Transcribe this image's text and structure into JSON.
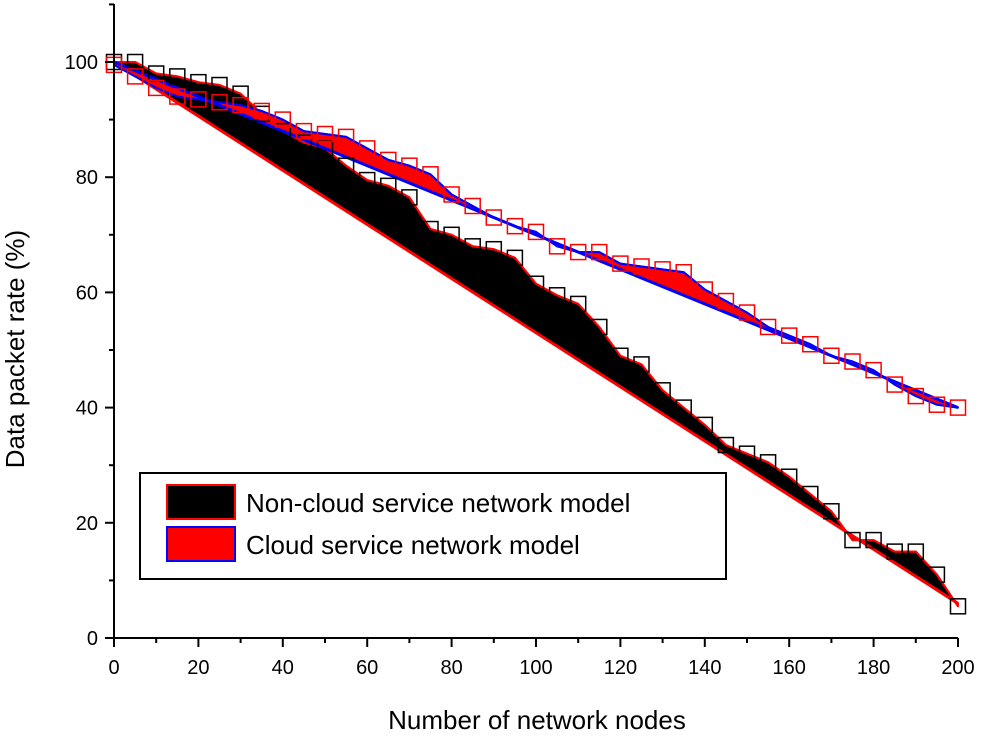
{
  "chart_data": {
    "type": "area",
    "xlabel": "Number of network nodes",
    "ylabel": "Data packet rate (%)",
    "xlim": [
      0,
      200
    ],
    "ylim": [
      0,
      110
    ],
    "xticks": [
      "0",
      "20",
      "40",
      "60",
      "80",
      "100",
      "120",
      "140",
      "160",
      "180",
      "200"
    ],
    "yticks": [
      "0",
      "20",
      "40",
      "60",
      "80",
      "100"
    ],
    "grid": false,
    "legend_position": "bottom-left",
    "series": [
      {
        "name": "Non-cloud service network model",
        "fill_color": "#000000",
        "edge_color": "#ff0000",
        "marker_color": "#000000",
        "baseline": {
          "x": [
            0,
            200
          ],
          "y": [
            100,
            6
          ]
        },
        "x": [
          0,
          5,
          10,
          15,
          20,
          25,
          30,
          35,
          40,
          45,
          50,
          55,
          60,
          65,
          70,
          75,
          80,
          85,
          90,
          95,
          100,
          105,
          110,
          115,
          120,
          125,
          130,
          135,
          140,
          145,
          150,
          155,
          160,
          165,
          170,
          175,
          180,
          185,
          190,
          195,
          200
        ],
        "y": [
          100,
          100,
          98,
          97.5,
          96.5,
          96,
          94.5,
          91,
          88,
          86,
          85,
          82,
          79.5,
          78.5,
          76.5,
          71,
          70,
          68,
          67.5,
          66,
          61.5,
          59.5,
          58,
          54,
          49,
          47.5,
          43,
          40,
          37,
          33.5,
          32,
          30.5,
          28,
          25,
          22,
          17,
          17,
          15,
          15,
          11,
          5.5
        ]
      },
      {
        "name": "Cloud service network model",
        "fill_color": "#ff0000",
        "edge_color": "#0000ff",
        "marker_color": "#ff0000",
        "baseline": {
          "x": [
            0,
            200
          ],
          "y": [
            100,
            40
          ]
        },
        "x": [
          0,
          5,
          10,
          15,
          20,
          25,
          30,
          35,
          40,
          45,
          50,
          55,
          60,
          65,
          70,
          75,
          80,
          85,
          90,
          95,
          100,
          105,
          110,
          115,
          120,
          125,
          130,
          135,
          140,
          145,
          150,
          155,
          160,
          165,
          170,
          175,
          180,
          185,
          190,
          195,
          200
        ],
        "y": [
          99.5,
          97.5,
          95.5,
          94,
          93.5,
          93,
          92.5,
          91.5,
          90,
          88,
          87.5,
          87,
          85,
          83,
          82,
          80.5,
          77,
          75,
          73,
          71.5,
          70.5,
          68,
          67,
          67,
          65,
          64.5,
          64,
          63.5,
          60.5,
          58.5,
          56.5,
          54,
          52.5,
          51,
          49,
          48,
          46.5,
          44,
          42,
          40.5,
          40
        ]
      }
    ]
  }
}
